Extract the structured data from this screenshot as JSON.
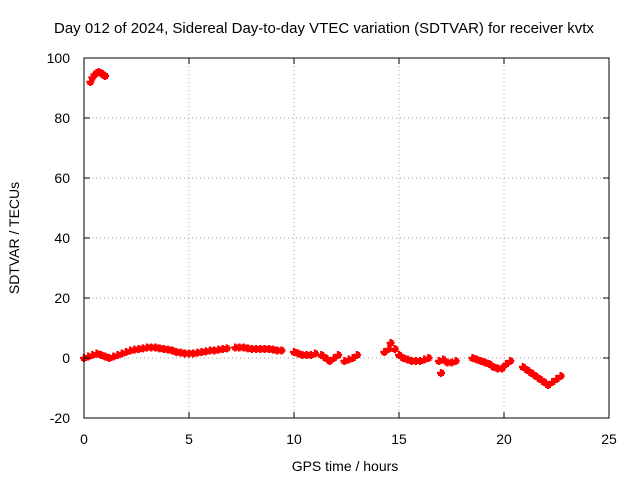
{
  "chart_data": {
    "type": "scatter",
    "title": "Day 012 of 2024, Sidereal Day-to-day VTEC variation (SDTVAR) for receiver kvtx",
    "xlabel": "GPS time / hours",
    "ylabel": "SDTVAR / TECUs",
    "xlim": [
      0,
      25
    ],
    "ylim": [
      -20,
      100
    ],
    "xticks": [
      0,
      5,
      10,
      15,
      20,
      25
    ],
    "xtick_labels": [
      "0",
      "5",
      "10",
      "15",
      "20",
      "25"
    ],
    "yticks": [
      -20,
      0,
      20,
      40,
      60,
      80,
      100
    ],
    "ytick_labels": [
      "-20",
      "0",
      "20",
      "40",
      "60",
      "80",
      "100"
    ],
    "grid": true,
    "legend": "none",
    "marker_color": "#ff0000",
    "series": [
      {
        "name": "SDTVAR",
        "points": [
          [
            0.3,
            92
          ],
          [
            0.4,
            93.5
          ],
          [
            0.5,
            94.5
          ],
          [
            0.6,
            95
          ],
          [
            0.7,
            95.3
          ],
          [
            0.8,
            95
          ],
          [
            0.9,
            94.5
          ],
          [
            1.0,
            94
          ],
          [
            0.0,
            0
          ],
          [
            0.2,
            0.5
          ],
          [
            0.4,
            1
          ],
          [
            0.6,
            1.5
          ],
          [
            0.8,
            1
          ],
          [
            1.0,
            0.5
          ],
          [
            1.2,
            0
          ],
          [
            1.4,
            0.5
          ],
          [
            1.6,
            1
          ],
          [
            1.8,
            1.5
          ],
          [
            2.0,
            2
          ],
          [
            2.2,
            2.5
          ],
          [
            2.4,
            2.8
          ],
          [
            2.6,
            3
          ],
          [
            2.8,
            3.2
          ],
          [
            3.0,
            3.5
          ],
          [
            3.2,
            3.5
          ],
          [
            3.4,
            3.5
          ],
          [
            3.6,
            3.2
          ],
          [
            3.8,
            3
          ],
          [
            4.0,
            2.8
          ],
          [
            4.2,
            2.5
          ],
          [
            4.4,
            2
          ],
          [
            4.6,
            1.8
          ],
          [
            4.8,
            1.5
          ],
          [
            5.0,
            1.5
          ],
          [
            5.2,
            1.5
          ],
          [
            5.4,
            1.8
          ],
          [
            5.6,
            2
          ],
          [
            5.8,
            2.2
          ],
          [
            6.0,
            2.5
          ],
          [
            6.2,
            2.5
          ],
          [
            6.4,
            2.8
          ],
          [
            6.6,
            3
          ],
          [
            6.8,
            3.2
          ],
          [
            7.2,
            3.5
          ],
          [
            7.4,
            3.5
          ],
          [
            7.6,
            3.5
          ],
          [
            7.8,
            3.2
          ],
          [
            8.0,
            3
          ],
          [
            8.2,
            3
          ],
          [
            8.4,
            3
          ],
          [
            8.6,
            3
          ],
          [
            8.8,
            3
          ],
          [
            9.0,
            2.8
          ],
          [
            9.2,
            2.5
          ],
          [
            9.4,
            2.5
          ],
          [
            10.0,
            2
          ],
          [
            10.2,
            1.5
          ],
          [
            10.4,
            1
          ],
          [
            10.6,
            1
          ],
          [
            10.8,
            1
          ],
          [
            11.0,
            1.5
          ],
          [
            11.3,
            1
          ],
          [
            11.5,
            0
          ],
          [
            11.7,
            -1
          ],
          [
            11.9,
            0
          ],
          [
            12.1,
            1
          ],
          [
            12.4,
            -1
          ],
          [
            12.6,
            -0.5
          ],
          [
            12.8,
            0
          ],
          [
            13.0,
            1
          ],
          [
            14.3,
            2
          ],
          [
            14.5,
            3
          ],
          [
            14.6,
            5
          ],
          [
            14.8,
            3
          ],
          [
            15.0,
            1
          ],
          [
            15.2,
            0
          ],
          [
            15.4,
            -0.5
          ],
          [
            15.6,
            -1
          ],
          [
            15.8,
            -1
          ],
          [
            16.0,
            -1
          ],
          [
            16.2,
            -0.5
          ],
          [
            16.4,
            0
          ],
          [
            16.9,
            -1
          ],
          [
            17.1,
            -0.5
          ],
          [
            17.3,
            -1.5
          ],
          [
            17.5,
            -1.5
          ],
          [
            17.7,
            -1
          ],
          [
            17.0,
            -5
          ],
          [
            18.5,
            0
          ],
          [
            18.7,
            -0.5
          ],
          [
            18.9,
            -1
          ],
          [
            19.1,
            -1.5
          ],
          [
            19.3,
            -2
          ],
          [
            19.5,
            -3
          ],
          [
            19.7,
            -3.5
          ],
          [
            19.9,
            -3.5
          ],
          [
            20.1,
            -2
          ],
          [
            20.3,
            -1
          ],
          [
            20.9,
            -3
          ],
          [
            21.1,
            -4
          ],
          [
            21.3,
            -5
          ],
          [
            21.5,
            -6
          ],
          [
            21.7,
            -7
          ],
          [
            21.9,
            -8
          ],
          [
            22.1,
            -9
          ],
          [
            22.3,
            -8
          ],
          [
            22.5,
            -7
          ],
          [
            22.7,
            -6
          ]
        ]
      }
    ]
  }
}
